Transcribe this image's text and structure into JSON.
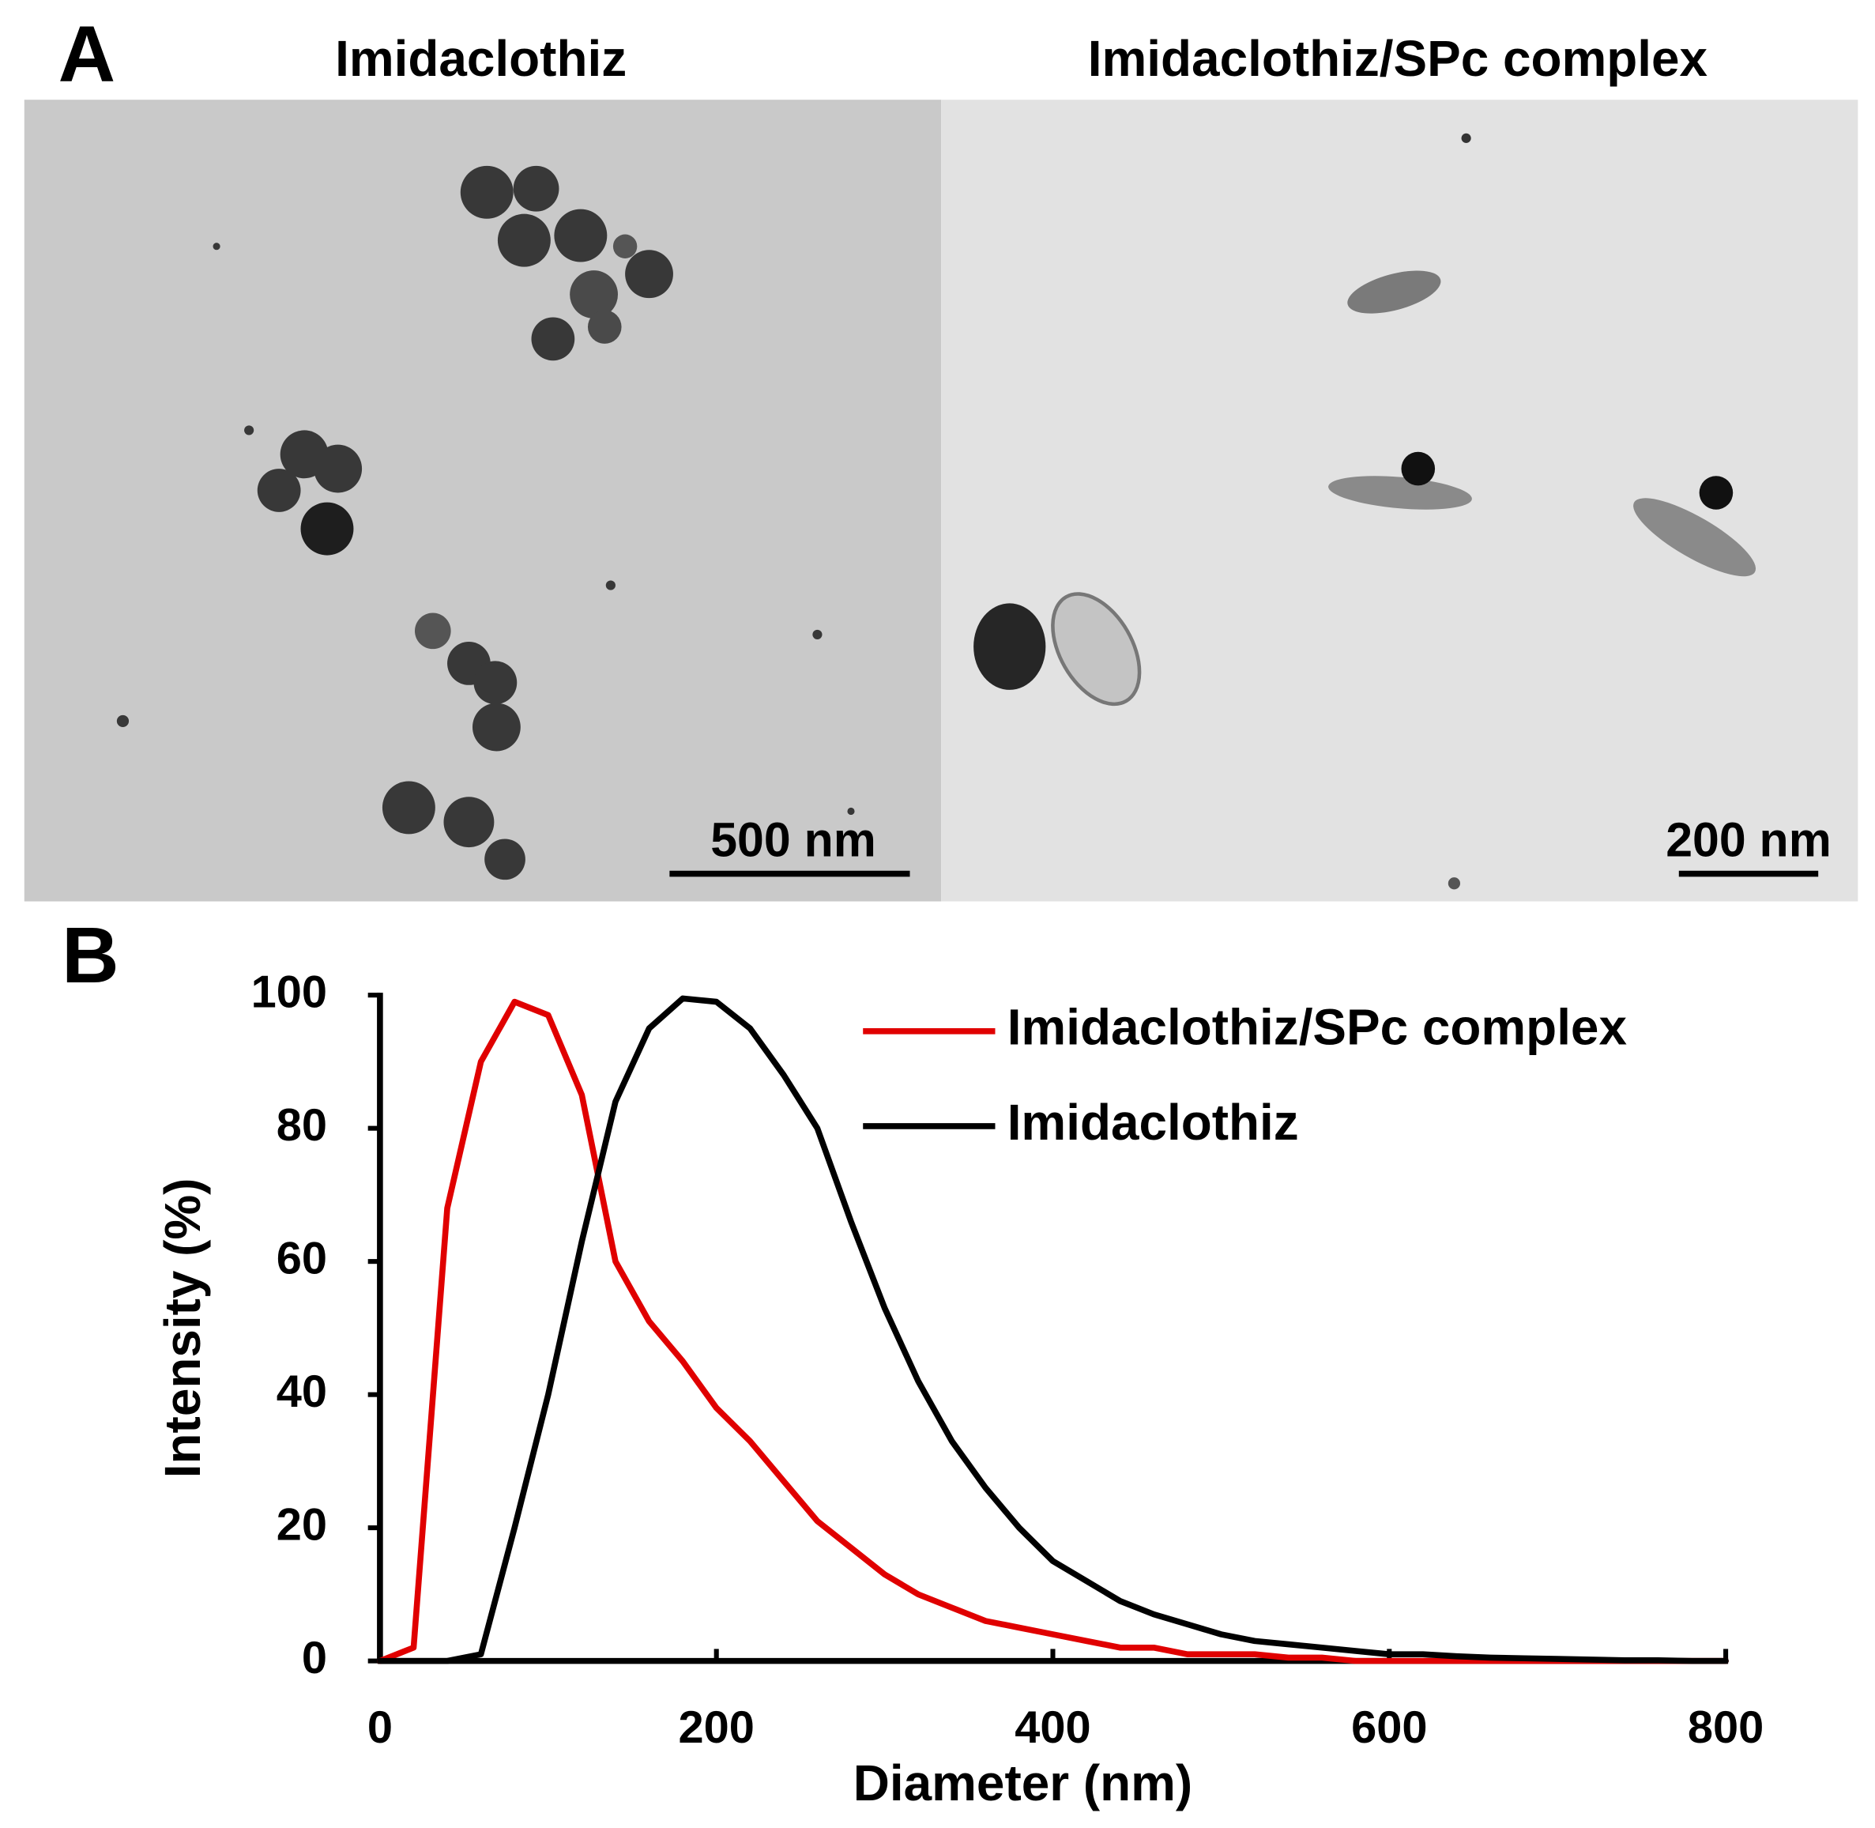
{
  "panel_a": {
    "label": "A",
    "images": [
      {
        "title": "Imidaclothiz",
        "scale_bar": "500 nm"
      },
      {
        "title": "Imidaclothiz/SPc complex",
        "scale_bar": "200 nm"
      }
    ]
  },
  "panel_b": {
    "label": "B"
  },
  "chart_data": {
    "type": "line",
    "x_label": "Diameter (nm)",
    "y_label": "Intensity (%)",
    "x": [
      0,
      20,
      40,
      60,
      80,
      100,
      120,
      140,
      160,
      180,
      200,
      220,
      240,
      260,
      280,
      300,
      320,
      340,
      360,
      380,
      400,
      420,
      440,
      460,
      480,
      500,
      520,
      540,
      560,
      580,
      600,
      620,
      640,
      660,
      680,
      700,
      720,
      740,
      760,
      780,
      800
    ],
    "series": [
      {
        "name": "Imidaclothiz/SPc complex",
        "color": "#e00000",
        "values": [
          0,
          2,
          68,
          90,
          99,
          97,
          85,
          60,
          51,
          45,
          38,
          33,
          27,
          21,
          17,
          13,
          10,
          8,
          6,
          5,
          4,
          3,
          2,
          2,
          1,
          1,
          1,
          0.5,
          0.5,
          0,
          0,
          0,
          0,
          0,
          0,
          0,
          0,
          0,
          0,
          0,
          0
        ]
      },
      {
        "name": "Imidaclothiz",
        "color": "#000000",
        "values": [
          0,
          0,
          0,
          1,
          20,
          40,
          63,
          84,
          95,
          99.5,
          99,
          95,
          88,
          80,
          66,
          53,
          42,
          33,
          26,
          20,
          15,
          12,
          9,
          7,
          5.5,
          4,
          3,
          2.5,
          2,
          1.5,
          1,
          1,
          0.7,
          0.5,
          0.4,
          0.3,
          0.2,
          0.1,
          0.1,
          0,
          0
        ]
      }
    ],
    "xlim": [
      0,
      800
    ],
    "xticks": [
      0,
      200,
      400,
      600,
      800
    ],
    "ylim": [
      0,
      100
    ],
    "yticks": [
      0,
      20,
      40,
      60,
      80,
      100
    ],
    "legend": "top-right",
    "grid": false
  }
}
